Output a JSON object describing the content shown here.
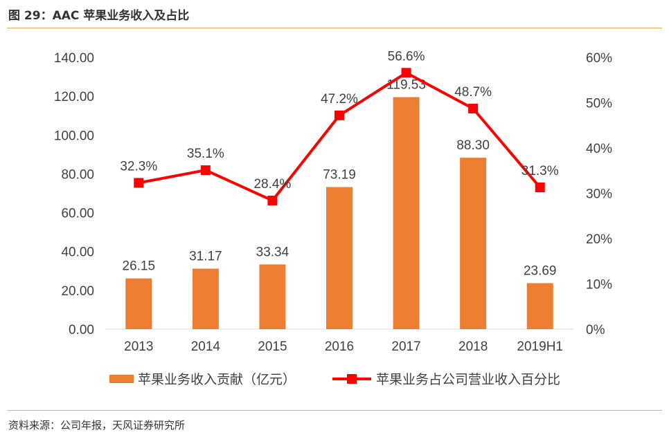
{
  "figure_title": "图 29：AAC 苹果业务收入及占比",
  "source": "资料来源：公司年报，天风证券研究所",
  "colors": {
    "bar": "#ed7d31",
    "line": "#ff0000",
    "rule": "#f2a65a"
  },
  "chart_data": {
    "type": "bar+line",
    "categories": [
      "2013",
      "2014",
      "2015",
      "2016",
      "2017",
      "2018",
      "2019H1"
    ],
    "series": [
      {
        "name": "苹果业务收入贡献（亿元）",
        "type": "bar",
        "axis": "left",
        "values": [
          26.15,
          31.17,
          33.34,
          73.19,
          119.53,
          88.3,
          23.69
        ],
        "labels": [
          "26.15",
          "31.17",
          "33.34",
          "73.19",
          "119.53",
          "88.30",
          "23.69"
        ]
      },
      {
        "name": "苹果业务占公司营业收入百分比",
        "type": "line",
        "axis": "right",
        "values": [
          32.3,
          35.1,
          28.4,
          47.2,
          56.6,
          48.7,
          31.3
        ],
        "labels": [
          "32.3%",
          "35.1%",
          "28.4%",
          "47.2%",
          "56.6%",
          "48.7%",
          "31.3%"
        ]
      }
    ],
    "left_axis": {
      "ylim": [
        0,
        140
      ],
      "ticks": [
        "0.00",
        "20.00",
        "40.00",
        "60.00",
        "80.00",
        "100.00",
        "120.00",
        "140.00"
      ]
    },
    "right_axis": {
      "ylim": [
        0,
        60
      ],
      "ticks": [
        "0%",
        "10%",
        "20%",
        "30%",
        "40%",
        "50%",
        "60%"
      ]
    },
    "grid": false,
    "legend_position": "bottom"
  }
}
